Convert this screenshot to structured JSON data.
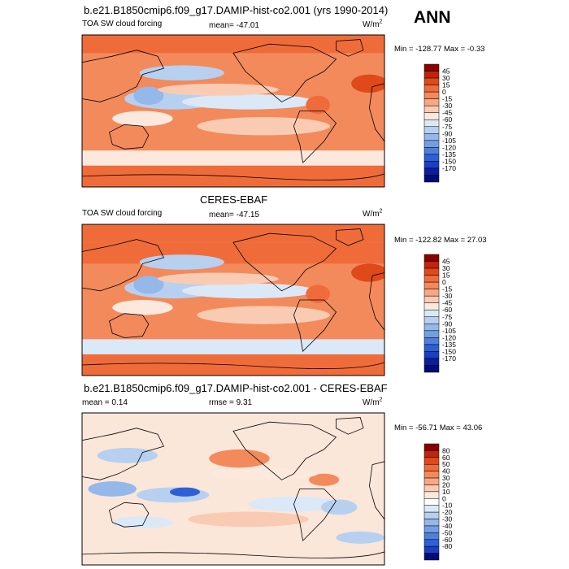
{
  "season": "ANN",
  "panels": [
    {
      "title": "b.e21.B1850cmip6.f09_g17.DAMIP-hist-co2.001 (yrs 1990-2014)",
      "left_label": "TOA SW cloud forcing",
      "center_label": "mean= -47.01",
      "units": "W/m",
      "units_sup": "2",
      "minmax": "Min = -128.77 Max = -0.33"
    },
    {
      "title": "CERES-EBAF",
      "left_label": "TOA SW cloud forcing",
      "center_label": "mean= -47.15",
      "units": "W/m",
      "units_sup": "2",
      "minmax": "Min = -122.82 Max = 27.03"
    },
    {
      "title": "b.e21.B1850cmip6.f09_g17.DAMIP-hist-co2.001 - CERES-EBAF",
      "left_label": "mean = 0.14",
      "center_label": "rmse = 9.31",
      "units": "W/m",
      "units_sup": "2",
      "minmax": "Min = -56.71 Max = 43.06"
    }
  ],
  "colors": {
    "field_levels": [
      "#8b0000",
      "#c0250a",
      "#e0491a",
      "#ef6c3a",
      "#f38a5c",
      "#f7a883",
      "#facbb3",
      "#fce8dc",
      "#dbe8f7",
      "#b7d0f0",
      "#95b8ea",
      "#739fe2",
      "#4f7fdc",
      "#2e5fd6",
      "#1b3fc4",
      "#0a1f9e",
      "#000c77"
    ],
    "diff_levels": [
      "#8b0000",
      "#c0250a",
      "#e0491a",
      "#ef6c3a",
      "#f38a5c",
      "#f7a883",
      "#facbb3",
      "#fce8dc",
      "#ffffff",
      "#dbe8f7",
      "#b7d0f0",
      "#95b8ea",
      "#739fe2",
      "#4f7fdc",
      "#2e5fd6",
      "#1b3fc4",
      "#000c77"
    ]
  },
  "chart_data": [
    {
      "type": "heatmap",
      "title": "b.e21.B1850cmip6.f09_g17.DAMIP-hist-co2.001 (yrs 1990-2014)",
      "variable": "TOA SW cloud forcing",
      "units": "W/m2",
      "mean": -47.01,
      "min": -128.77,
      "max": -0.33,
      "colorbar_levels": [
        45,
        30,
        15,
        0,
        -15,
        -30,
        -45,
        -60,
        -75,
        -90,
        -105,
        -120,
        -135,
        -150,
        -170
      ],
      "colorbar_labels": [
        "45",
        "30",
        "15",
        "0",
        "-15",
        "-30",
        "-45",
        "-60",
        "-75",
        "-90",
        "-105",
        "-120",
        "-135",
        "-150",
        "-170"
      ],
      "projection": "cylindrical equidistant, centered on the Pacific"
    },
    {
      "type": "heatmap",
      "title": "CERES-EBAF",
      "variable": "TOA SW cloud forcing",
      "units": "W/m2",
      "mean": -47.15,
      "min": -122.82,
      "max": 27.03,
      "colorbar_levels": [
        45,
        30,
        15,
        0,
        -15,
        -30,
        -45,
        -60,
        -75,
        -90,
        -105,
        -120,
        -135,
        -150,
        -170
      ],
      "colorbar_labels": [
        "45",
        "30",
        "15",
        "0",
        "-15",
        "-30",
        "-45",
        "-60",
        "-75",
        "-90",
        "-105",
        "-120",
        "-135",
        "-150",
        "-170"
      ],
      "projection": "cylindrical equidistant, centered on the Pacific"
    },
    {
      "type": "heatmap",
      "title": "b.e21.B1850cmip6.f09_g17.DAMIP-hist-co2.001 - CERES-EBAF",
      "units": "W/m2",
      "mean": 0.14,
      "rmse": 9.31,
      "min": -56.71,
      "max": 43.06,
      "colorbar_levels": [
        80,
        60,
        50,
        40,
        30,
        20,
        10,
        0,
        -10,
        -20,
        -30,
        -40,
        -50,
        -60,
        -80
      ],
      "colorbar_labels": [
        "80",
        "60",
        "50",
        "40",
        "30",
        "20",
        "10",
        "0",
        "-10",
        "-20",
        "-30",
        "-40",
        "-50",
        "-60",
        "-80"
      ],
      "projection": "cylindrical equidistant, centered on the Pacific"
    }
  ]
}
